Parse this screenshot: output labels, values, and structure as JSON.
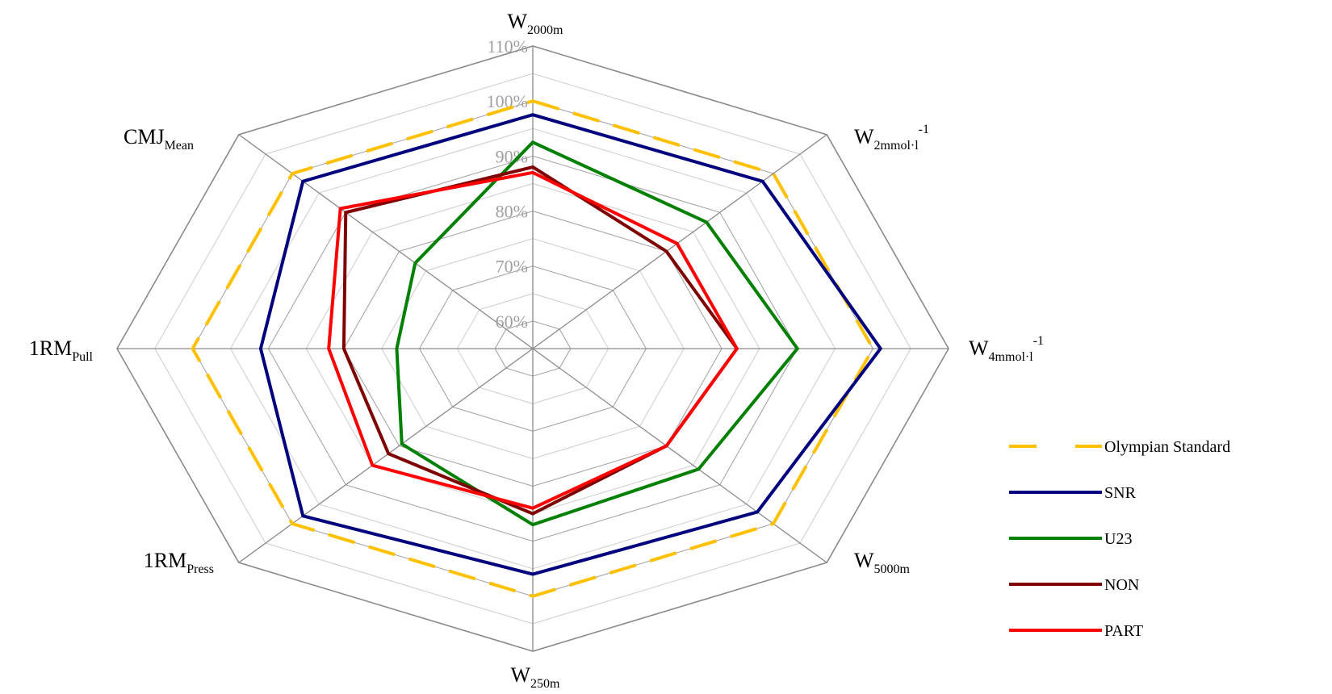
{
  "chart_data": {
    "type": "radar",
    "axes": [
      {
        "main": "W",
        "sub": "2000m",
        "sup": ""
      },
      {
        "main": "W",
        "sub": "2mmol·l",
        "sup": "-1"
      },
      {
        "main": "W",
        "sub": "4mmol·l",
        "sup": "-1"
      },
      {
        "main": "W",
        "sub": "5000m",
        "sup": ""
      },
      {
        "main": "W",
        "sub": "250m",
        "sup": ""
      },
      {
        "main": "1RM",
        "sub": "Press",
        "sup": ""
      },
      {
        "main": "1RM",
        "sub": "Pull",
        "sup": ""
      },
      {
        "main": "CMJ",
        "sub": "Mean",
        "sup": ""
      }
    ],
    "ticks": [
      "60%",
      "70%",
      "80%",
      "90%",
      "100%",
      "110%"
    ],
    "tick_values": [
      60,
      70,
      80,
      90,
      100,
      110
    ],
    "rlim": [
      55,
      110
    ],
    "grid": true,
    "legend_position": "right",
    "series": [
      {
        "name": "Olympian Standard",
        "color": "#FFC000",
        "dash": true,
        "values": [
          100,
          100,
          100,
          100,
          100,
          100,
          100,
          100
        ]
      },
      {
        "name": "SNR",
        "color": "#00007F",
        "dash": false,
        "values": [
          97.5,
          98,
          101,
          97,
          96,
          98,
          91,
          98
        ]
      },
      {
        "name": "U23",
        "color": "#008000",
        "dash": false,
        "values": [
          92.5,
          87.5,
          90,
          86,
          87,
          79.5,
          73,
          77
        ]
      },
      {
        "name": "NON",
        "color": "#7F0000",
        "dash": false,
        "values": [
          88,
          80,
          82,
          80,
          85,
          82,
          80,
          90
        ]
      },
      {
        "name": "PART",
        "color": "#FF0000",
        "dash": false,
        "values": [
          87,
          82,
          82,
          80,
          84,
          85,
          82,
          91
        ]
      }
    ]
  }
}
